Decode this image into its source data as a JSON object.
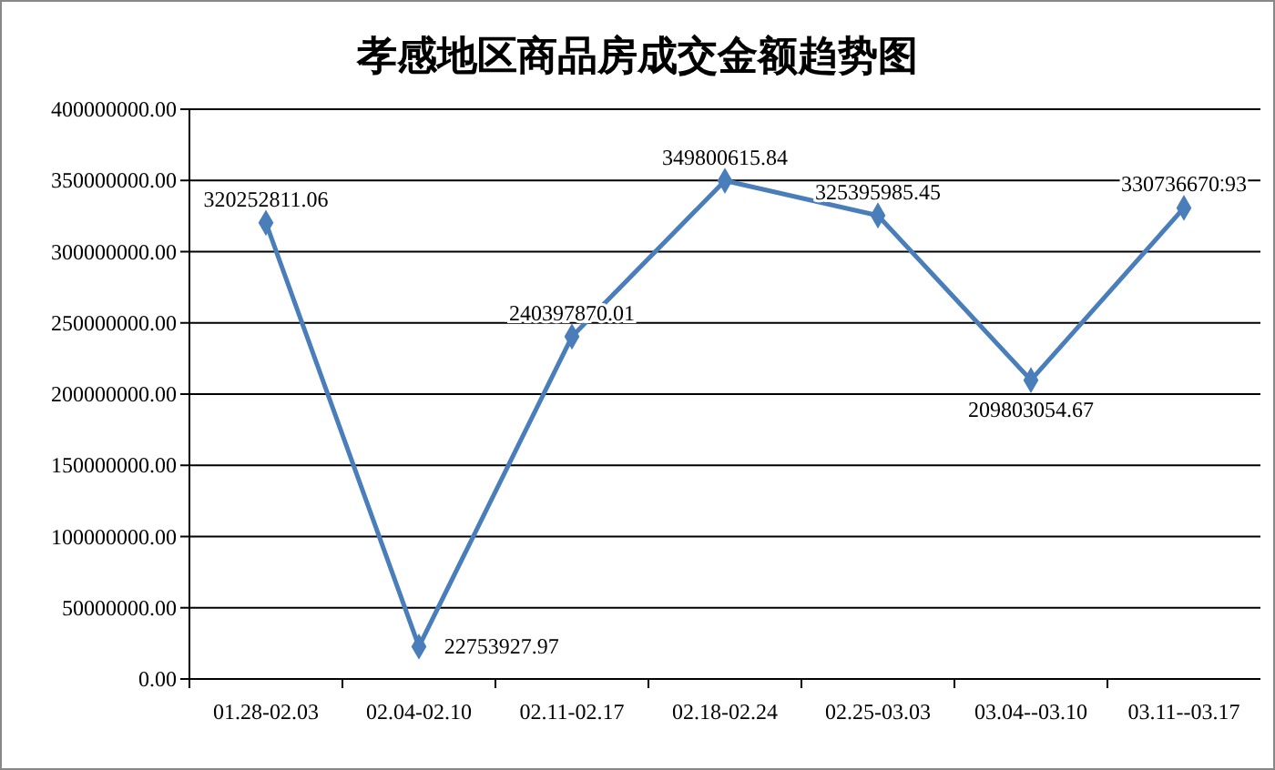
{
  "chart_data": {
    "type": "line",
    "title": "孝感地区商品房成交金额趋势图",
    "categories": [
      "01.28-02.03",
      "02.04-02.10",
      "02.11-02.17",
      "02.18-02.24",
      "02.25-03.03",
      "03.04--03.10",
      "03.11--03.17"
    ],
    "series": [
      {
        "color": "#4a7ebb",
        "values": [
          320252811.06,
          22753927.97,
          240397870.01,
          349800615.84,
          325395985.45,
          209803054.67,
          330736670.93
        ]
      }
    ],
    "data_labels": true,
    "ylim": [
      0,
      400000000
    ],
    "yticks": [
      {
        "value": 0,
        "label": "0.00"
      },
      {
        "value": 50000000,
        "label": "50000000.00"
      },
      {
        "value": 100000000,
        "label": "100000000.00"
      },
      {
        "value": 150000000,
        "label": "150000000.00"
      },
      {
        "value": 200000000,
        "label": "200000000.00"
      },
      {
        "value": 250000000,
        "label": "250000000.00"
      },
      {
        "value": 300000000,
        "label": "300000000.00"
      },
      {
        "value": 350000000,
        "label": "350000000.00"
      },
      {
        "value": 400000000,
        "label": "400000000.00"
      }
    ],
    "grid": "y",
    "marker": "diamond",
    "line_style": "solid"
  }
}
